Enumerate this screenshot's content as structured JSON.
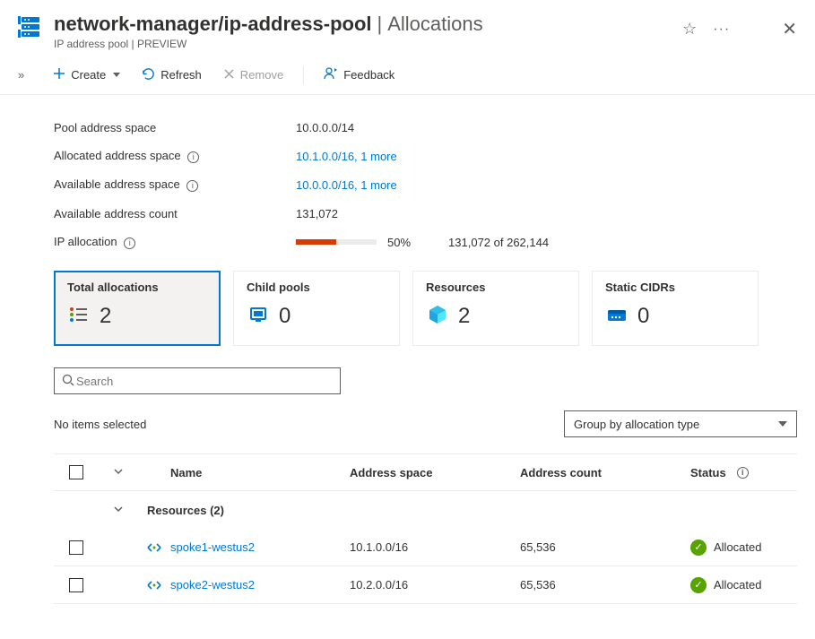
{
  "header": {
    "breadcrumb_path": "network-manager/ip-address-pool",
    "breadcrumb_sep": "|",
    "breadcrumb_leaf": "Allocations",
    "subtitle": "IP address pool | PREVIEW"
  },
  "toolbar": {
    "create": "Create",
    "refresh": "Refresh",
    "remove": "Remove",
    "feedback": "Feedback"
  },
  "info": {
    "pool_space_label": "Pool address space",
    "pool_space_value": "10.0.0.0/14",
    "allocated_space_label": "Allocated address space",
    "allocated_space_value": "10.1.0.0/16, 1 more",
    "available_space_label": "Available address space",
    "available_space_value": "10.0.0.0/16, 1 more",
    "available_count_label": "Available address count",
    "available_count_value": "131,072",
    "ip_alloc_label": "IP allocation",
    "ip_alloc_percent_text": "50%",
    "ip_alloc_percent": 50,
    "ip_alloc_ratio": "131,072 of 262,144",
    "progress_bg": "#edebe9",
    "progress_fill": "#d83b01"
  },
  "cards": [
    {
      "title": "Total allocations",
      "value": "2",
      "icon": "list",
      "selected": true,
      "icon_color": "#57a300"
    },
    {
      "title": "Child pools",
      "value": "0",
      "icon": "pool",
      "selected": false,
      "icon_color": "#0078d4"
    },
    {
      "title": "Resources",
      "value": "2",
      "icon": "cube",
      "selected": false,
      "icon_color": "#32bfe6"
    },
    {
      "title": "Static CIDRs",
      "value": "0",
      "icon": "cidr",
      "selected": false,
      "icon_color": "#0078d4"
    }
  ],
  "search": {
    "placeholder": "Search"
  },
  "listbar": {
    "no_items": "No items selected",
    "group_by": "Group by allocation type"
  },
  "table": {
    "columns": {
      "name": "Name",
      "addr": "Address space",
      "count": "Address count",
      "status": "Status"
    },
    "group_label": "Resources (2)",
    "rows": [
      {
        "name": "spoke1-westus2",
        "addr": "10.1.0.0/16",
        "count": "65,536",
        "status": "Allocated"
      },
      {
        "name": "spoke2-westus2",
        "addr": "10.2.0.0/16",
        "count": "65,536",
        "status": "Allocated"
      }
    ]
  },
  "colors": {
    "link": "#0078d4",
    "text": "#323130",
    "muted": "#605e5c",
    "border": "#edebe9",
    "success": "#57a300"
  }
}
